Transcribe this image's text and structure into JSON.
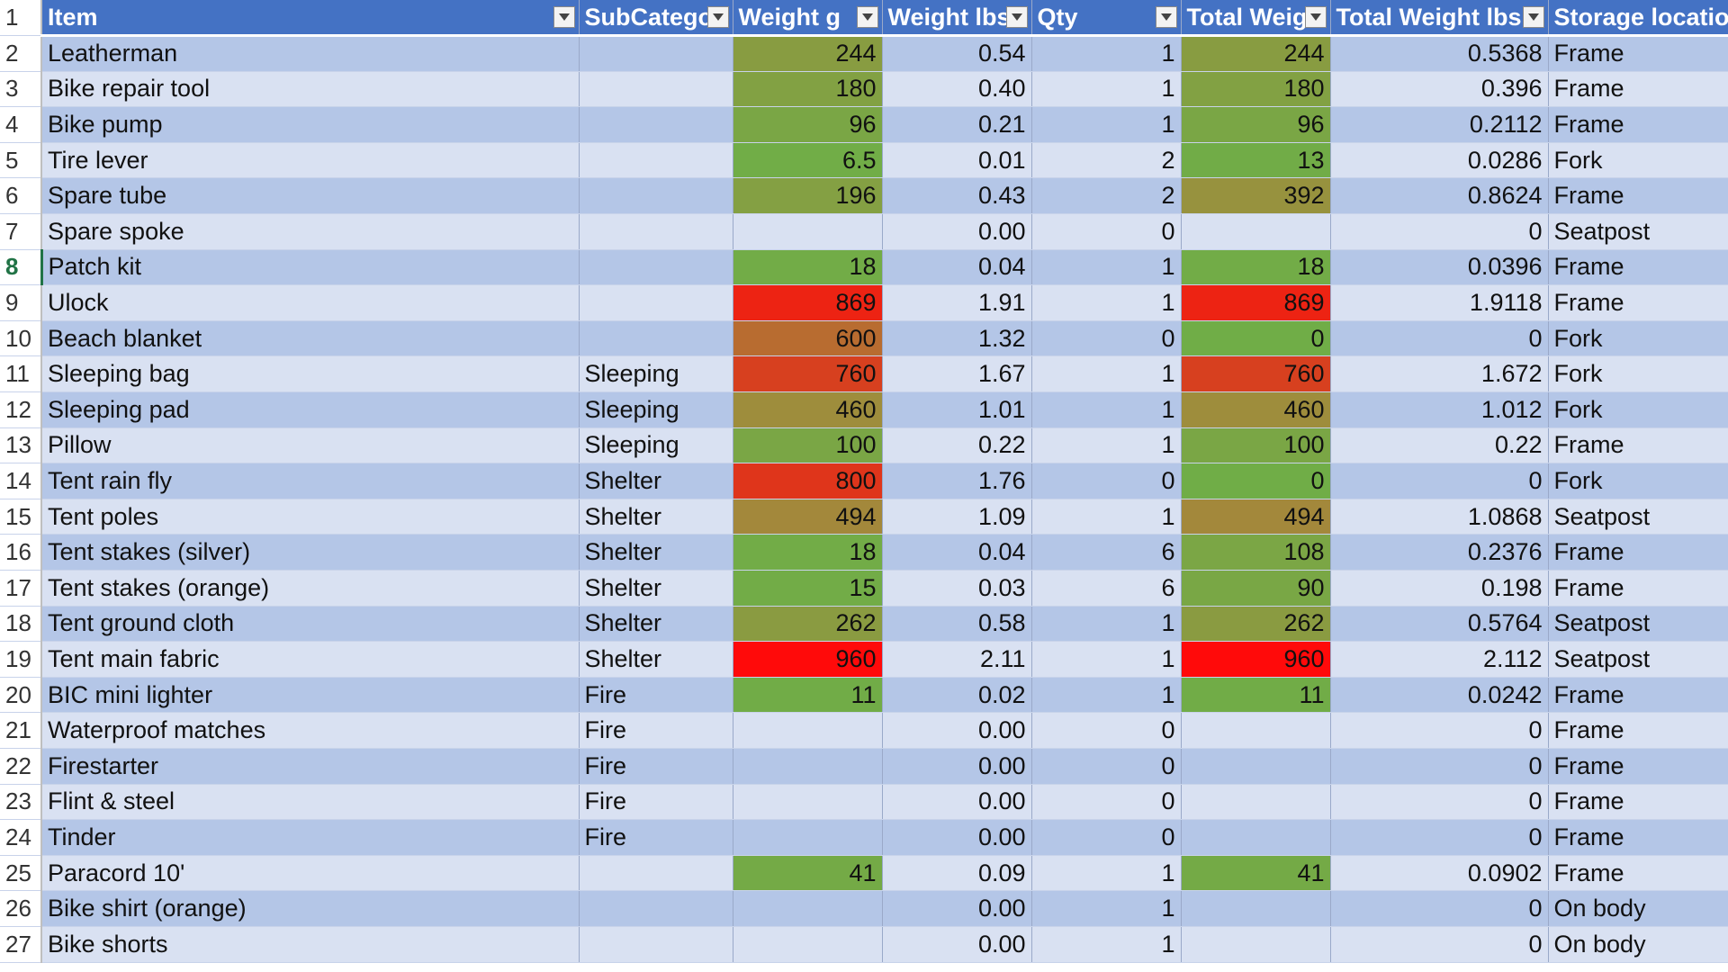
{
  "sheet": {
    "header_row_number": "1",
    "headers": [
      {
        "label": "Item",
        "filter_icon": "dropdown-arrow-icon"
      },
      {
        "label": "SubCatego",
        "filter_icon": "dropdown-arrow-icon"
      },
      {
        "label": "Weight g",
        "filter_icon": "dropdown-arrow-icon"
      },
      {
        "label": "Weight lbs",
        "filter_icon": "dropdown-arrow-icon"
      },
      {
        "label": "Qty",
        "filter_icon": "dropdown-arrow-icon"
      },
      {
        "label": "Total Weig",
        "filter_icon": "dropdown-arrow-icon"
      },
      {
        "label": "Total Weight lbs",
        "filter_icon": "dropdown-arrow-icon"
      },
      {
        "label": "Storage locatio",
        "filter_icon": ""
      }
    ],
    "active_row": "8",
    "colors": {
      "header_bg": "#4472c4",
      "band_dark": "#b4c6e7",
      "band_light": "#d9e1f2",
      "heat_low": "#70ad47",
      "heat_high": "#ff0000",
      "active_row_accent": "#217346"
    },
    "rows": [
      {
        "n": "2",
        "item": "Leatherman",
        "sub": "",
        "wg": "244",
        "wlbs": "0.54",
        "qty": "1",
        "tw": "244",
        "twlbs": "0.5368",
        "loc": "Frame"
      },
      {
        "n": "3",
        "item": "Bike repair tool",
        "sub": "",
        "wg": "180",
        "wlbs": "0.40",
        "qty": "1",
        "tw": "180",
        "twlbs": "0.396",
        "loc": "Frame"
      },
      {
        "n": "4",
        "item": "Bike pump",
        "sub": "",
        "wg": "96",
        "wlbs": "0.21",
        "qty": "1",
        "tw": "96",
        "twlbs": "0.2112",
        "loc": "Frame"
      },
      {
        "n": "5",
        "item": "Tire lever",
        "sub": "",
        "wg": "6.5",
        "wlbs": "0.01",
        "qty": "2",
        "tw": "13",
        "twlbs": "0.0286",
        "loc": "Fork"
      },
      {
        "n": "6",
        "item": "Spare tube",
        "sub": "",
        "wg": "196",
        "wlbs": "0.43",
        "qty": "2",
        "tw": "392",
        "twlbs": "0.8624",
        "loc": "Frame"
      },
      {
        "n": "7",
        "item": "Spare spoke",
        "sub": "",
        "wg": "",
        "wlbs": "0.00",
        "qty": "0",
        "tw": "",
        "twlbs": "0",
        "loc": "Seatpost"
      },
      {
        "n": "8",
        "item": "Patch kit",
        "sub": "",
        "wg": "18",
        "wlbs": "0.04",
        "qty": "1",
        "tw": "18",
        "twlbs": "0.0396",
        "loc": "Frame"
      },
      {
        "n": "9",
        "item": "Ulock",
        "sub": "",
        "wg": "869",
        "wlbs": "1.91",
        "qty": "1",
        "tw": "869",
        "twlbs": "1.9118",
        "loc": "Frame"
      },
      {
        "n": "10",
        "item": "Beach blanket",
        "sub": "",
        "wg": "600",
        "wlbs": "1.32",
        "qty": "0",
        "tw": "0",
        "twlbs": "0",
        "loc": "Fork"
      },
      {
        "n": "11",
        "item": "Sleeping bag",
        "sub": "Sleeping",
        "wg": "760",
        "wlbs": "1.67",
        "qty": "1",
        "tw": "760",
        "twlbs": "1.672",
        "loc": "Fork"
      },
      {
        "n": "12",
        "item": "Sleeping pad",
        "sub": "Sleeping",
        "wg": "460",
        "wlbs": "1.01",
        "qty": "1",
        "tw": "460",
        "twlbs": "1.012",
        "loc": "Fork"
      },
      {
        "n": "13",
        "item": "Pillow",
        "sub": "Sleeping",
        "wg": "100",
        "wlbs": "0.22",
        "qty": "1",
        "tw": "100",
        "twlbs": "0.22",
        "loc": "Frame"
      },
      {
        "n": "14",
        "item": "Tent rain fly",
        "sub": "Shelter",
        "wg": "800",
        "wlbs": "1.76",
        "qty": "0",
        "tw": "0",
        "twlbs": "0",
        "loc": "Fork"
      },
      {
        "n": "15",
        "item": "Tent poles",
        "sub": "Shelter",
        "wg": "494",
        "wlbs": "1.09",
        "qty": "1",
        "tw": "494",
        "twlbs": "1.0868",
        "loc": "Seatpost"
      },
      {
        "n": "16",
        "item": "Tent stakes (silver)",
        "sub": "Shelter",
        "wg": "18",
        "wlbs": "0.04",
        "qty": "6",
        "tw": "108",
        "twlbs": "0.2376",
        "loc": "Frame"
      },
      {
        "n": "17",
        "item": "Tent stakes (orange)",
        "sub": "Shelter",
        "wg": "15",
        "wlbs": "0.03",
        "qty": "6",
        "tw": "90",
        "twlbs": "0.198",
        "loc": "Frame"
      },
      {
        "n": "18",
        "item": "Tent ground cloth",
        "sub": "Shelter",
        "wg": "262",
        "wlbs": "0.58",
        "qty": "1",
        "tw": "262",
        "twlbs": "0.5764",
        "loc": "Seatpost"
      },
      {
        "n": "19",
        "item": "Tent main fabric",
        "sub": "Shelter",
        "wg": "960",
        "wlbs": "2.11",
        "qty": "1",
        "tw": "960",
        "twlbs": "2.112",
        "loc": "Seatpost"
      },
      {
        "n": "20",
        "item": "BIC mini lighter",
        "sub": "Fire",
        "wg": "11",
        "wlbs": "0.02",
        "qty": "1",
        "tw": "11",
        "twlbs": "0.0242",
        "loc": "Frame"
      },
      {
        "n": "21",
        "item": "Waterproof matches",
        "sub": "Fire",
        "wg": "",
        "wlbs": "0.00",
        "qty": "0",
        "tw": "",
        "twlbs": "0",
        "loc": "Frame"
      },
      {
        "n": "22",
        "item": "Firestarter",
        "sub": "Fire",
        "wg": "",
        "wlbs": "0.00",
        "qty": "0",
        "tw": "",
        "twlbs": "0",
        "loc": "Frame"
      },
      {
        "n": "23",
        "item": "Flint & steel",
        "sub": "Fire",
        "wg": "",
        "wlbs": "0.00",
        "qty": "0",
        "tw": "",
        "twlbs": "0",
        "loc": "Frame"
      },
      {
        "n": "24",
        "item": "Tinder",
        "sub": "Fire",
        "wg": "",
        "wlbs": "0.00",
        "qty": "0",
        "tw": "",
        "twlbs": "0",
        "loc": "Frame"
      },
      {
        "n": "25",
        "item": "Paracord 10'",
        "sub": "",
        "wg": "41",
        "wlbs": "0.09",
        "qty": "1",
        "tw": "41",
        "twlbs": "0.0902",
        "loc": "Frame"
      },
      {
        "n": "26",
        "item": "Bike shirt (orange)",
        "sub": "",
        "wg": "",
        "wlbs": "0.00",
        "qty": "1",
        "tw": "",
        "twlbs": "0",
        "loc": "On body"
      },
      {
        "n": "27",
        "item": "Bike shorts",
        "sub": "",
        "wg": "",
        "wlbs": "0.00",
        "qty": "1",
        "tw": "",
        "twlbs": "0",
        "loc": "On body"
      }
    ]
  }
}
